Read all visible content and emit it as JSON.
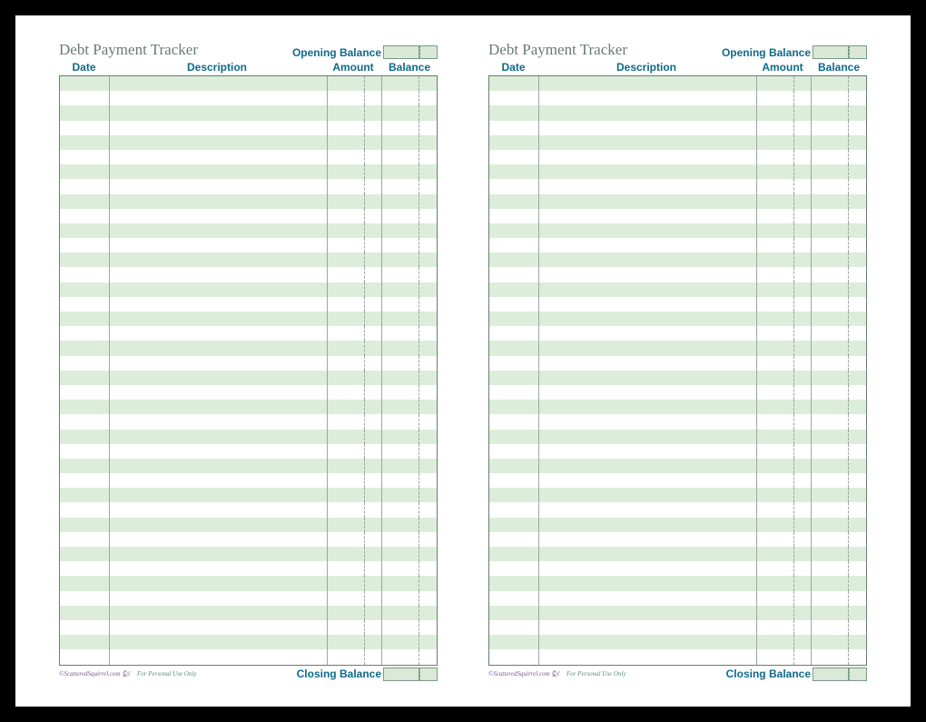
{
  "tracker": {
    "title": "Debt Payment Tracker",
    "opening_balance_label": "Opening Balance",
    "closing_balance_label": "Closing Balance",
    "columns": {
      "date": "Date",
      "description": "Description",
      "amount": "Amount",
      "balance": "Balance"
    },
    "row_count": 40,
    "styling": {
      "title_color": "#6b7a74",
      "label_color": "#0d6a8a",
      "shaded_row_color": "#dceed9",
      "plain_row_color": "#ffffff",
      "border_color": "#6b7a74",
      "inner_border_color": "#9aa8a2",
      "balance_box_fill": "#d9e9d6",
      "balance_box_border": "#7a9a8a",
      "page_background": "#ffffff",
      "outer_background": "#000000",
      "title_fontsize": 17,
      "label_fontsize": 12,
      "column_widths": {
        "date": 55,
        "amount_main": 40,
        "amount_cents": 20,
        "balance_main": 40,
        "balance_cents": 20
      }
    },
    "attribution": {
      "site": "©ScatteredSquirrel.com",
      "note": "For Personal Use Only"
    }
  },
  "copies": 2
}
